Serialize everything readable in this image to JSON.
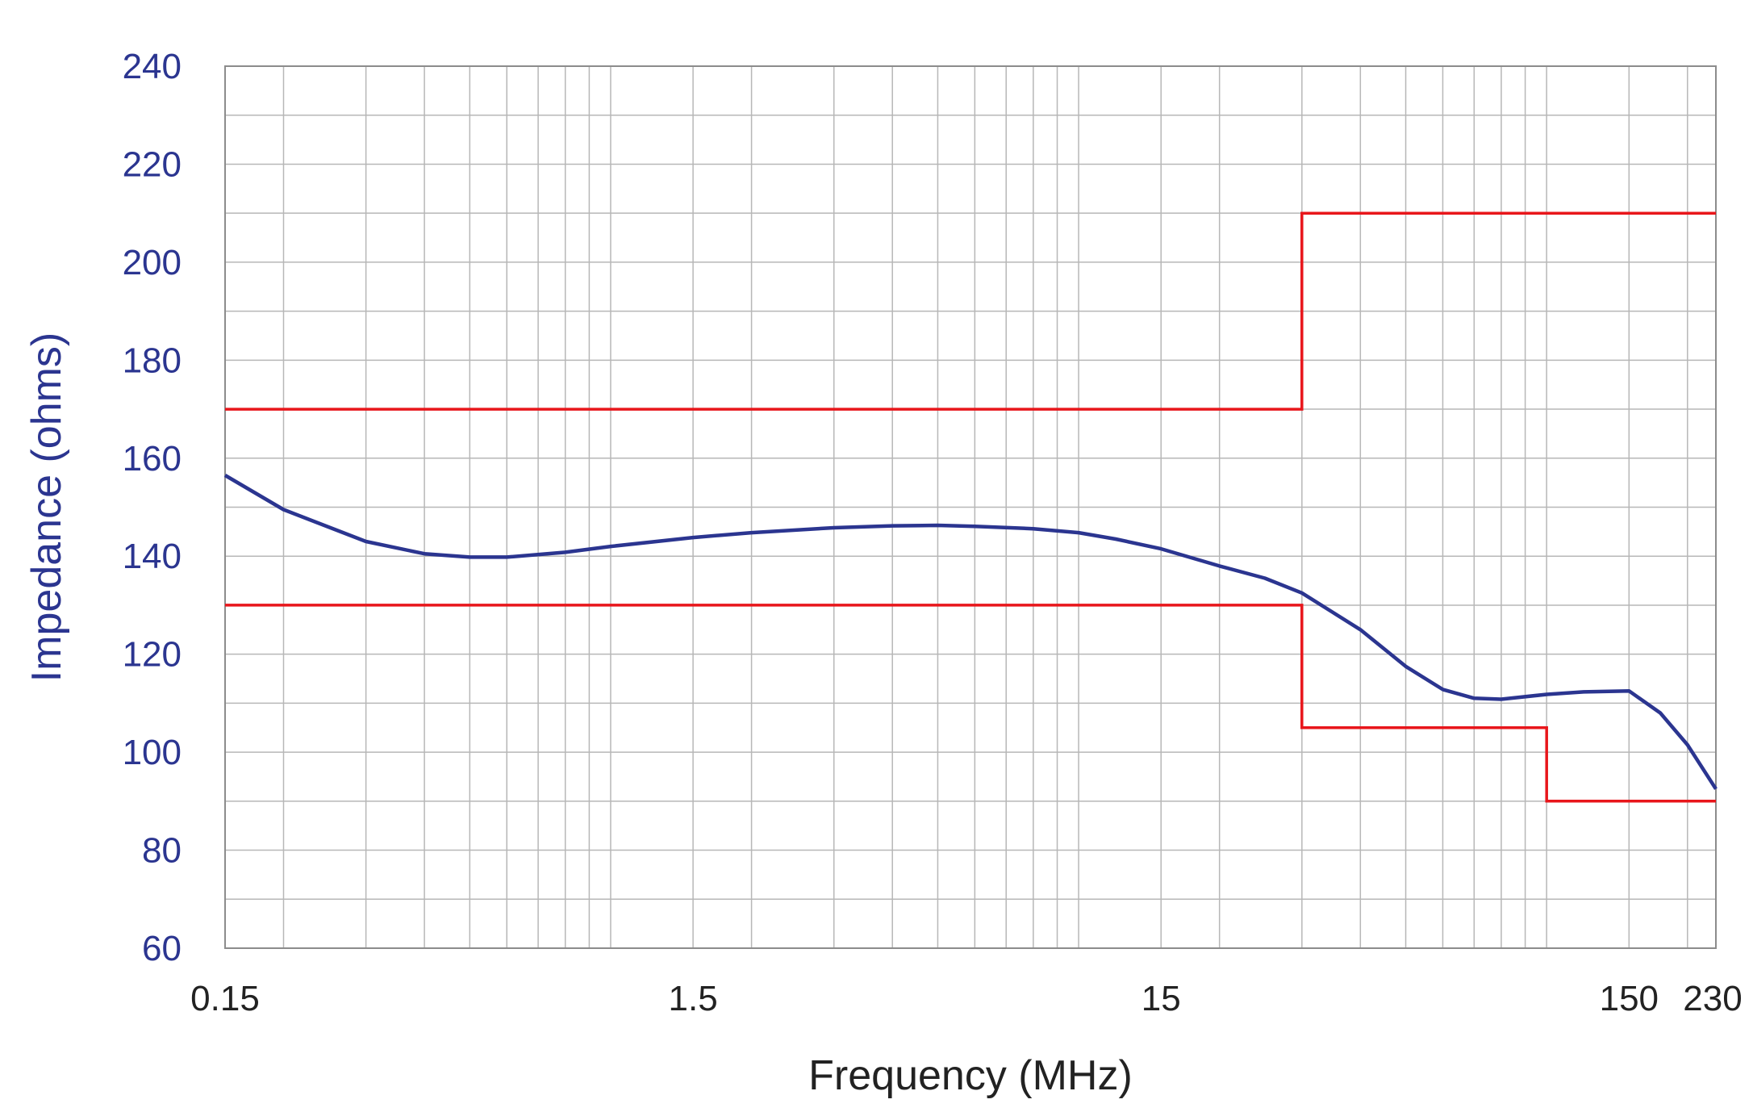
{
  "chart_data": {
    "type": "line",
    "xlabel": "Frequency (MHz)",
    "ylabel": "Impedance (ohms)",
    "x_scale": "log",
    "xlim": [
      0.15,
      230
    ],
    "ylim": [
      60,
      240
    ],
    "x_ticks": [
      0.15,
      1.5,
      15,
      150,
      230
    ],
    "x_tick_labels": [
      "0.15",
      "1.5",
      "15",
      "150",
      "230"
    ],
    "y_ticks": [
      60,
      80,
      100,
      120,
      140,
      160,
      180,
      200,
      220,
      240
    ],
    "y_tick_labels": [
      "60",
      "80",
      "100",
      "120",
      "140",
      "160",
      "180",
      "200",
      "220",
      "240"
    ],
    "y_grid_step": 10,
    "grid": true,
    "colors": {
      "measured": "#2b3590",
      "limit": "#e8161b",
      "grid": "#b7b7b7",
      "tick_y": "#2b3590",
      "tick_x": "#222222"
    },
    "series": [
      {
        "color": "#2b3590",
        "x": [
          0.15,
          0.2,
          0.3,
          0.4,
          0.5,
          0.6,
          0.8,
          1.0,
          1.5,
          2.0,
          3.0,
          4.0,
          5.0,
          6.0,
          8.0,
          10.0,
          12.0,
          15.0,
          20.0,
          25.0,
          30.0,
          40.0,
          50.0,
          60.0,
          70.0,
          80.0,
          100.0,
          120.0,
          150.0,
          175.0,
          200.0,
          230.0
        ],
        "y": [
          156.5,
          149.5,
          143,
          140.5,
          139.8,
          139.8,
          140.8,
          142,
          143.8,
          144.8,
          145.8,
          146.2,
          146.3,
          146.1,
          145.6,
          144.8,
          143.5,
          141.5,
          138,
          135.5,
          132.5,
          125,
          117.5,
          112.8,
          111,
          110.8,
          111.8,
          112.3,
          112.5,
          108,
          101.5,
          92.5
        ]
      },
      {
        "color": "#e8161b",
        "x": [
          0.15,
          30,
          30,
          230
        ],
        "y": [
          170,
          170,
          210,
          210
        ]
      },
      {
        "color": "#e8161b",
        "x": [
          0.15,
          30,
          30,
          100,
          100,
          230
        ],
        "y": [
          130,
          130,
          105,
          105,
          90,
          90
        ]
      }
    ]
  }
}
